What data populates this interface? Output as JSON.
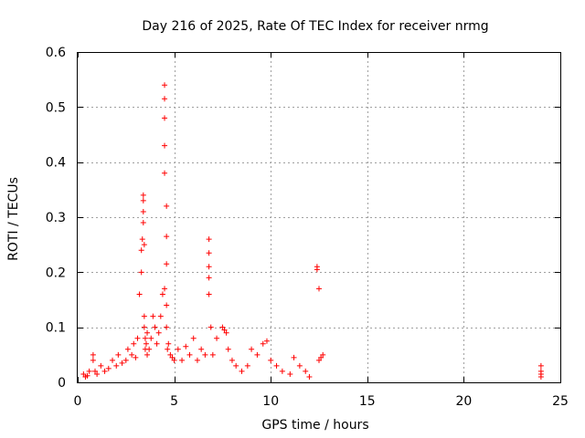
{
  "chart_data": {
    "type": "scatter",
    "title": "Day 216 of 2025, Rate Of TEC Index for receiver nrmg",
    "xlabel": "GPS time / hours",
    "ylabel": "ROTI / TECUs",
    "xlim": [
      0,
      25
    ],
    "ylim": [
      0,
      0.6
    ],
    "xticks": [
      "0",
      "5",
      "10",
      "15",
      "20",
      "25"
    ],
    "yticks": [
      "0",
      "0.1",
      "0.2",
      "0.3",
      "0.4",
      "0.5",
      "0.6"
    ],
    "grid": true,
    "marker": "+",
    "color": "#ff0000",
    "series": [
      {
        "x": [
          0.3,
          0.4,
          0.5,
          0.6,
          0.8,
          0.8,
          0.9,
          1.0,
          1.2,
          1.4,
          1.6,
          1.8,
          2.0,
          2.1,
          2.3,
          2.5,
          2.6,
          2.8,
          2.9,
          3.0,
          3.1,
          3.2,
          3.3,
          3.3,
          3.35,
          3.4,
          3.4,
          3.4,
          3.4,
          3.45,
          3.45,
          3.45,
          3.5,
          3.5,
          3.55,
          3.6,
          3.6,
          3.7,
          3.8,
          3.9,
          4.0,
          4.1,
          4.2,
          4.3,
          4.4,
          4.5,
          4.5,
          4.5,
          4.5,
          4.5,
          4.5,
          4.6,
          4.6,
          4.6,
          4.6,
          4.6,
          4.65,
          4.7,
          4.8,
          4.9,
          5.0,
          5.2,
          5.4,
          5.6,
          5.8,
          6.0,
          6.2,
          6.4,
          6.6,
          6.8,
          6.8,
          6.8,
          6.8,
          6.8,
          6.9,
          7.0,
          7.2,
          7.5,
          7.6,
          7.7,
          7.8,
          8.0,
          8.2,
          8.5,
          8.8,
          9.0,
          9.3,
          9.6,
          9.8,
          10.0,
          10.3,
          10.6,
          11.0,
          11.2,
          11.5,
          11.8,
          12.0,
          12.4,
          12.4,
          12.5,
          12.5,
          12.6,
          12.7,
          24.0,
          24.0,
          24.0,
          24.0
        ],
        "y": [
          0.015,
          0.01,
          0.012,
          0.02,
          0.05,
          0.04,
          0.02,
          0.015,
          0.03,
          0.02,
          0.025,
          0.04,
          0.03,
          0.05,
          0.035,
          0.04,
          0.06,
          0.05,
          0.07,
          0.045,
          0.08,
          0.16,
          0.2,
          0.24,
          0.26,
          0.29,
          0.31,
          0.33,
          0.34,
          0.25,
          0.12,
          0.1,
          0.08,
          0.06,
          0.07,
          0.09,
          0.05,
          0.06,
          0.08,
          0.12,
          0.1,
          0.07,
          0.09,
          0.12,
          0.16,
          0.54,
          0.515,
          0.48,
          0.43,
          0.38,
          0.17,
          0.32,
          0.265,
          0.215,
          0.14,
          0.1,
          0.06,
          0.07,
          0.05,
          0.045,
          0.04,
          0.06,
          0.04,
          0.065,
          0.05,
          0.08,
          0.04,
          0.06,
          0.05,
          0.26,
          0.235,
          0.21,
          0.19,
          0.16,
          0.1,
          0.05,
          0.08,
          0.1,
          0.095,
          0.09,
          0.06,
          0.04,
          0.03,
          0.02,
          0.03,
          0.06,
          0.05,
          0.07,
          0.075,
          0.04,
          0.03,
          0.02,
          0.015,
          0.045,
          0.03,
          0.02,
          0.01,
          0.21,
          0.205,
          0.17,
          0.04,
          0.045,
          0.05,
          0.03,
          0.02,
          0.015,
          0.01
        ]
      }
    ]
  }
}
